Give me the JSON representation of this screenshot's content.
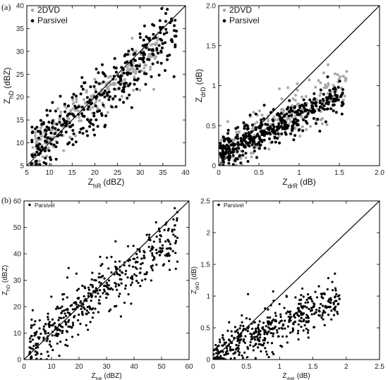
{
  "panel_labels": {
    "a": "(a)",
    "b": "(b)"
  },
  "chart_data": [
    {
      "type": "scatter",
      "panel": "(a)",
      "xlabel": "Z",
      "xlabel_sub": "hR",
      "xlabel_unit": "(dBZ)",
      "ylabel": "Z",
      "ylabel_sub": "hD",
      "ylabel_unit": "(dBZ)",
      "xlim": [
        5,
        40
      ],
      "ylim": [
        5,
        40
      ],
      "xticks": [
        "5",
        "10",
        "15",
        "20",
        "25",
        "30",
        "35",
        "40"
      ],
      "yticks": [
        "5",
        "10",
        "15",
        "20",
        "25",
        "30",
        "35",
        "40"
      ],
      "legend_position": "top-left",
      "one_to_one_line": true,
      "series": [
        {
          "name": "2DVD",
          "color": "#a8a8a8",
          "n": 260,
          "x_range": [
            6,
            34
          ],
          "slope": 0.8,
          "intercept": 3.5,
          "spread": 2.5
        },
        {
          "name": "Parsivel",
          "color": "#000000",
          "n": 360,
          "x_range": [
            6,
            38
          ],
          "slope": 0.8,
          "intercept": 3.5,
          "spread": 3.8
        }
      ]
    },
    {
      "type": "scatter",
      "panel": "(a)",
      "xlabel": "Z",
      "xlabel_sub": "drR",
      "xlabel_unit": "(dB)",
      "ylabel": "Z",
      "ylabel_sub": "drD",
      "ylabel_unit": "(dB)",
      "xlim": [
        0,
        2.0
      ],
      "ylim": [
        0,
        2.0
      ],
      "xticks": [
        "0",
        "0.5",
        "1",
        "1.5",
        "2.0"
      ],
      "yticks": [
        "0",
        "0.5",
        "1",
        "1.5",
        "2.0"
      ],
      "legend_position": "top-left",
      "one_to_one_line": true,
      "series": [
        {
          "name": "2DVD",
          "color": "#a8a8a8",
          "n": 250,
          "x_range": [
            0.02,
            1.6
          ],
          "slope": 0.55,
          "intercept": 0.15,
          "spread": 0.16
        },
        {
          "name": "Parsivel",
          "color": "#000000",
          "n": 430,
          "x_range": [
            0.02,
            1.55
          ],
          "slope": 0.5,
          "intercept": 0.13,
          "spread": 0.11
        }
      ]
    },
    {
      "type": "scatter",
      "panel": "(b)",
      "xlabel": "Z",
      "xlabel_sub": "hR",
      "xlabel_unit": "(dBZ)",
      "ylabel": "Z",
      "ylabel_sub": "hD",
      "ylabel_unit": "(dBZ)",
      "xlim": [
        0,
        60
      ],
      "ylim": [
        0,
        60
      ],
      "xticks": [
        "0",
        "10",
        "20",
        "30",
        "40",
        "50",
        "60"
      ],
      "yticks": [
        "0",
        "10",
        "20",
        "30",
        "40",
        "50",
        "60"
      ],
      "legend_position": "top-left",
      "one_to_one_line": true,
      "series": [
        {
          "name": "Parsivel",
          "color": "#000000",
          "n": 460,
          "x_range": [
            2,
            56
          ],
          "slope": 0.78,
          "intercept": 3.5,
          "spread": 5.5
        }
      ]
    },
    {
      "type": "scatter",
      "panel": "(b)",
      "xlabel": "Z",
      "xlabel_sub": "drR",
      "xlabel_unit": "(dB)",
      "ylabel": "Z",
      "ylabel_sub": "drD",
      "ylabel_unit": "(dB)",
      "xlim": [
        0,
        2.5
      ],
      "ylim": [
        0,
        2.5
      ],
      "xticks": [
        "0",
        "0.5",
        "1",
        "1.5",
        "2",
        "2.5"
      ],
      "yticks": [
        "0",
        "0.5",
        "1",
        "1.5",
        "2",
        "2.5"
      ],
      "legend_position": "top-left",
      "one_to_one_line": true,
      "series": [
        {
          "name": "Parsivel",
          "color": "#000000",
          "n": 440,
          "x_range": [
            0.01,
            1.9
          ],
          "slope": 0.45,
          "intercept": 0.1,
          "spread": 0.2
        }
      ]
    }
  ]
}
